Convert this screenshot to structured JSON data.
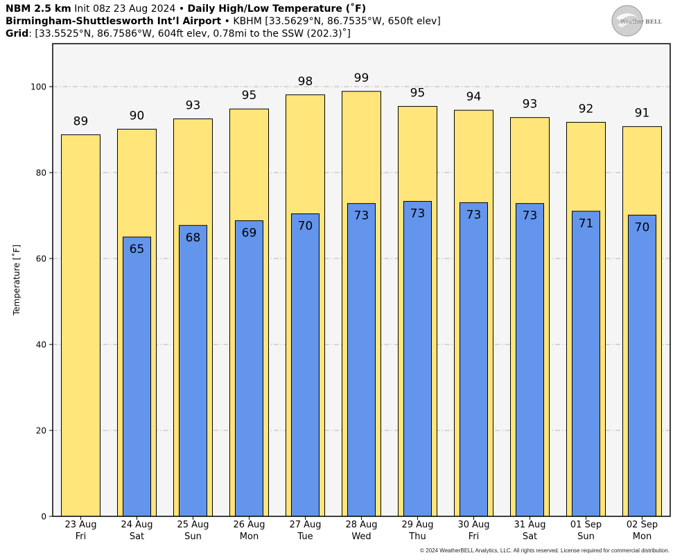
{
  "header": {
    "model": "NBM 2.5 km",
    "init": "Init 08z 23 Aug 2024",
    "sep1": "•",
    "product": "Daily High/Low Temperature (˚F)",
    "station_name": "Birmingham-Shuttlesworth Int’l Airport",
    "sep2": "•",
    "station_info": "KBHM [33.5629°N, 86.7535°W, 650ft elev]",
    "grid_label": "Grid",
    "grid_info": ": [33.5525°N, 86.7586°W, 604ft elev, 0.78mi to the SSW (202.3)˚]"
  },
  "logo": {
    "text_a": "Weather",
    "text_b": "BELL"
  },
  "copyright": "© 2024 WeatherBELL Analytics, LLC. All rights reserved. License required for commercial distribution.",
  "chart_data": {
    "type": "bar",
    "title": "Daily High/Low Temperature (˚F)",
    "ylabel": "Temperature [˚F]",
    "ylim": [
      0,
      110
    ],
    "yticks": [
      0,
      20,
      40,
      60,
      80,
      100
    ],
    "grid": true,
    "categories": [
      {
        "date": "23 Aug",
        "day": "Fri"
      },
      {
        "date": "24 Aug",
        "day": "Sat"
      },
      {
        "date": "25 Aug",
        "day": "Sun"
      },
      {
        "date": "26 Aug",
        "day": "Mon"
      },
      {
        "date": "27 Aug",
        "day": "Tue"
      },
      {
        "date": "28 Aug",
        "day": "Wed"
      },
      {
        "date": "29 Aug",
        "day": "Thu"
      },
      {
        "date": "30 Aug",
        "day": "Fri"
      },
      {
        "date": "31 Aug",
        "day": "Sat"
      },
      {
        "date": "01 Sep",
        "day": "Sun"
      },
      {
        "date": "02 Sep",
        "day": "Mon"
      }
    ],
    "series": [
      {
        "key": "high",
        "color": "#ffe57a",
        "values": [
          88.8,
          90.1,
          92.5,
          94.8,
          98.1,
          98.9,
          95.4,
          94.5,
          92.8,
          91.7,
          90.7
        ],
        "labels": [
          "89",
          "90",
          "93",
          "95",
          "98",
          "99",
          "95",
          "94",
          "93",
          "92",
          "91"
        ]
      },
      {
        "key": "low",
        "color": "#6495ed",
        "values": [
          null,
          65.0,
          67.7,
          68.8,
          70.4,
          72.8,
          73.3,
          73.0,
          72.8,
          71.0,
          70.1
        ],
        "labels": [
          "",
          "65",
          "68",
          "69",
          "70",
          "73",
          "73",
          "73",
          "73",
          "71",
          "70"
        ]
      }
    ]
  }
}
